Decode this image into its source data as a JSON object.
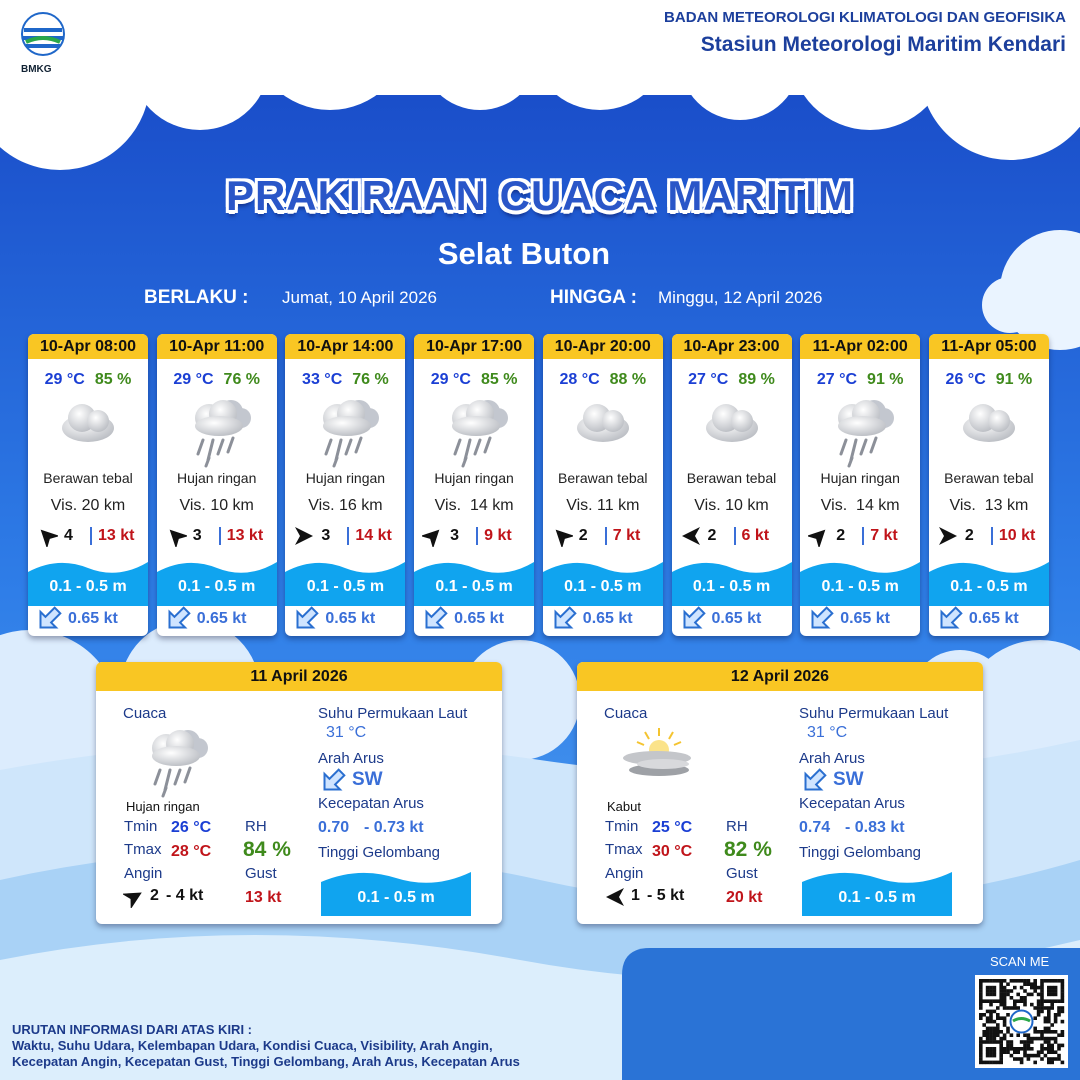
{
  "header": {
    "logo": "BMKG",
    "org": "BADAN METEOROLOGI KLIMATOLOGI DAN GEOFISIKA",
    "station": "Stasiun Meteorologi Maritim Kendari"
  },
  "title": "PRAKIRAAN CUACA MARITIM",
  "area": "Selat Buton",
  "validity": {
    "from_label": "BERLAKU :",
    "from": "Jumat, 10 April 2026",
    "to_label": "HINGGA :",
    "to": "Minggu, 12 April 2026"
  },
  "forecasts": [
    {
      "time": "10-Apr 08:00",
      "temp": "29 °C",
      "rh": "85 %",
      "condition": "Berawan tebal",
      "visibility": "Vis. 20 km",
      "wind": "4",
      "gust": "13 kt",
      "wave": "0.1 - 0.5 m",
      "current": "0.65 kt"
    },
    {
      "time": "10-Apr 11:00",
      "temp": "29 °C",
      "rh": "76 %",
      "condition": "Hujan ringan",
      "visibility": "Vis. 10 km",
      "wind": "3",
      "gust": "13 kt",
      "wave": "0.1 - 0.5 m",
      "current": "0.65 kt"
    },
    {
      "time": "10-Apr 14:00",
      "temp": "33 °C",
      "rh": "76 %",
      "condition": "Hujan ringan",
      "visibility": "Vis. 16 km",
      "wind": "3",
      "gust": "14 kt",
      "wave": "0.1 - 0.5 m",
      "current": "0.65 kt"
    },
    {
      "time": "10-Apr 17:00",
      "temp": "29 °C",
      "rh": "85 %",
      "condition": "Hujan ringan",
      "visibility": "Vis.  14 km",
      "wind": "3",
      "gust": "9 kt",
      "wave": "0.1 - 0.5 m",
      "current": "0.65 kt"
    },
    {
      "time": "10-Apr 20:00",
      "temp": "28 °C",
      "rh": "88 %",
      "condition": "Berawan tebal",
      "visibility": "Vis. 11 km",
      "wind": "2",
      "gust": "7 kt",
      "wave": "0.1 - 0.5 m",
      "current": "0.65 kt"
    },
    {
      "time": "10-Apr 23:00",
      "temp": "27 °C",
      "rh": "89 %",
      "condition": "Berawan tebal",
      "visibility": "Vis. 10 km",
      "wind": "2",
      "gust": "6 kt",
      "wave": "0.1 - 0.5 m",
      "current": "0.65 kt"
    },
    {
      "time": "11-Apr 02:00",
      "temp": "27 °C",
      "rh": "91 %",
      "condition": "Hujan ringan",
      "visibility": "Vis.  14 km",
      "wind": "2",
      "gust": "7 kt",
      "wave": "0.1 - 0.5 m",
      "current": "0.65 kt"
    },
    {
      "time": "11-Apr 05:00",
      "temp": "26 °C",
      "rh": "91 %",
      "condition": "Berawan tebal",
      "visibility": "Vis.  13 km",
      "wind": "2",
      "gust": "10 kt",
      "wave": "0.1 - 0.5 m",
      "current": "0.65 kt"
    }
  ],
  "daily_labels": {
    "weather": "Cuaca",
    "tmin": "Tmin",
    "tmax": "Tmax",
    "wind": "Angin",
    "rh": "RH",
    "gust": "Gust",
    "sst": "Suhu Permukaan Laut",
    "current_dir": "Arah Arus",
    "current_speed": "Kecepatan Arus",
    "wave": "Tinggi Gelombang"
  },
  "daily": [
    {
      "date": "11 April 2026",
      "condition": "Hujan ringan",
      "tmin": "26 °C",
      "tmax": "28 °C",
      "wind_min": "2",
      "wind_max": "- 4 kt",
      "rh": "84 %",
      "gust": "13 kt",
      "sst": "31 °C",
      "current_dir": "SW",
      "current_min": "0.70",
      "current_max": "- 0.73 kt",
      "wave": "0.1 - 0.5 m"
    },
    {
      "date": "12 April 2026",
      "condition": "Kabut",
      "tmin": "25 °C",
      "tmax": "30 °C",
      "wind_min": "1",
      "wind_max": "- 5 kt",
      "rh": "82 %",
      "gust": "20 kt",
      "sst": "31 °C",
      "current_dir": "SW",
      "current_min": "0.74",
      "current_max": "- 0.83 kt",
      "wave": "0.1 - 0.5 m"
    }
  ],
  "scan": "SCAN ME",
  "footer": {
    "title": "URUTAN INFORMASI DARI ATAS KIRI :",
    "lines": [
      "Waktu, Suhu Udara, Kelembapan Udara, Kondisi Cuaca, Visibility, Arah Angin,",
      "Kecepatan Angin, Kecepatan Gust, Tinggi Gelombang, Arah Arus, Kecepatan Arus"
    ]
  }
}
